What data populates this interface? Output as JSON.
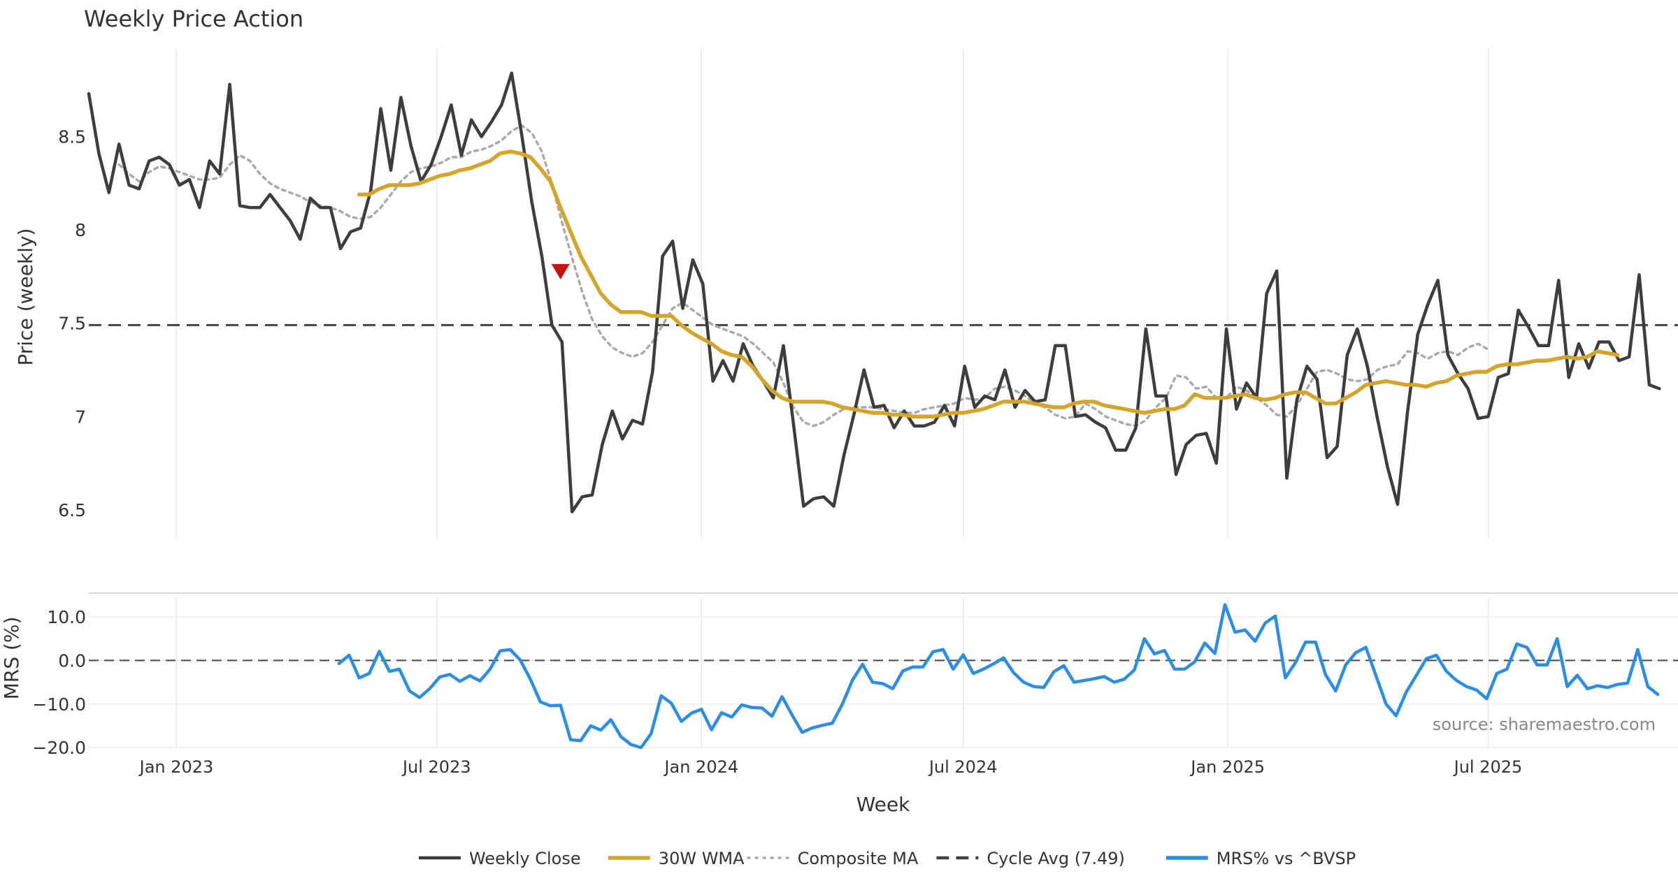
{
  "chart_data": {
    "type": "line",
    "title": "Weekly Price Action",
    "xlabel": "Week",
    "source": "source: sharemaestro.com",
    "colors": {
      "weekly_close": "#3d3d3d",
      "wma": "#d4a52b",
      "composite": "#aaaaaa",
      "cycle_avg": "#444444",
      "mrs": "#2b8de3",
      "marker": "#cc1111",
      "grid": "#e8e8e8"
    },
    "x_start": "2022-11-01",
    "x_end": "2025-11-10",
    "x_ticks": [
      {
        "date": "2023-01-01",
        "label": "Jan 2023"
      },
      {
        "date": "2023-07-01",
        "label": "Jul 2023"
      },
      {
        "date": "2024-01-01",
        "label": "Jan 2024"
      },
      {
        "date": "2024-07-01",
        "label": "Jul 2024"
      },
      {
        "date": "2025-01-01",
        "label": "Jan 2025"
      },
      {
        "date": "2025-07-01",
        "label": "Jul 2025"
      }
    ],
    "price_panel": {
      "ylabel": "Price (weekly)",
      "ylim": [
        6.35,
        8.97
      ],
      "y_ticks": [
        {
          "value": 6.5,
          "label": "6.5"
        },
        {
          "value": 7.0,
          "label": "7"
        },
        {
          "value": 7.5,
          "label": "7.5"
        },
        {
          "value": 8.0,
          "label": "8"
        },
        {
          "value": 8.5,
          "label": "8.5"
        }
      ],
      "cycle_avg": 7.49,
      "marker": {
        "date": "2023-09-25",
        "value": 7.78,
        "shape": "down-triangle"
      },
      "series": [
        {
          "name": "Weekly Close",
          "style": "solid",
          "start": "2022-11-01",
          "values": [
            8.73,
            8.41,
            8.2,
            8.46,
            8.24,
            8.22,
            8.37,
            8.39,
            8.35,
            8.24,
            8.27,
            8.12,
            8.37,
            8.3,
            8.78,
            8.13,
            8.12,
            8.12,
            8.19,
            8.12,
            8.05,
            7.95,
            8.17,
            8.12,
            8.12,
            7.9,
            7.99,
            8.01,
            8.21,
            8.65,
            8.32,
            8.71,
            8.45,
            8.26,
            8.35,
            8.5,
            8.67,
            8.4,
            8.59,
            8.5,
            8.58,
            8.67,
            8.84,
            8.51,
            8.15,
            7.86,
            7.49,
            7.4,
            6.49,
            6.57,
            6.58,
            6.85,
            7.03,
            6.88,
            6.98,
            6.96,
            7.24,
            7.86,
            7.94,
            7.58,
            7.84,
            7.71,
            7.19,
            7.3,
            7.19,
            7.39,
            7.27,
            7.19,
            7.1,
            7.38,
            6.96,
            6.52,
            6.56,
            6.57,
            6.52,
            6.79,
            7.01,
            7.25,
            7.05,
            7.06,
            6.94,
            7.03,
            6.95,
            6.95,
            6.97,
            7.06,
            6.95,
            7.27,
            7.05,
            7.11,
            7.09,
            7.25,
            7.05,
            7.14,
            7.08,
            7.09,
            7.38,
            7.38,
            7.0,
            7.01,
            6.97,
            6.94,
            6.82,
            6.82,
            6.94,
            7.47,
            7.11,
            7.11,
            6.69,
            6.85,
            6.9,
            6.91,
            6.75,
            7.47,
            7.04,
            7.18,
            7.1,
            7.66,
            7.78,
            6.67,
            7.09,
            7.27,
            7.2,
            6.78,
            6.84,
            7.33,
            7.47,
            7.27,
            6.99,
            6.73,
            6.53,
            7.03,
            7.44,
            7.6,
            7.73,
            7.33,
            7.23,
            7.15,
            6.99,
            7.0,
            7.21,
            7.23,
            7.57,
            7.48,
            7.38,
            7.38,
            7.73,
            7.21,
            7.39,
            7.26,
            7.4,
            7.4,
            7.3,
            7.32,
            7.76,
            7.17,
            7.15
          ]
        },
        {
          "name": "30W WMA",
          "style": "solid",
          "start": "2023-05-08",
          "values": [
            8.19,
            8.19,
            8.22,
            8.24,
            8.24,
            8.24,
            8.25,
            8.27,
            8.29,
            8.3,
            8.32,
            8.33,
            8.35,
            8.37,
            8.41,
            8.42,
            8.41,
            8.39,
            8.33,
            8.26,
            8.12,
            7.99,
            7.86,
            7.76,
            7.66,
            7.6,
            7.56,
            7.56,
            7.56,
            7.54,
            7.54,
            7.54,
            7.49,
            7.45,
            7.42,
            7.39,
            7.35,
            7.33,
            7.32,
            7.27,
            7.2,
            7.14,
            7.1,
            7.08,
            7.08,
            7.08,
            7.08,
            7.07,
            7.05,
            7.04,
            7.03,
            7.02,
            7.02,
            7.01,
            7.01,
            7.0,
            7.0,
            7.0,
            7.01,
            7.02,
            7.02,
            7.03,
            7.04,
            7.06,
            7.08,
            7.08,
            7.08,
            7.07,
            7.06,
            7.05,
            7.05,
            7.07,
            7.08,
            7.08,
            7.06,
            7.05,
            7.04,
            7.03,
            7.02,
            7.03,
            7.04,
            7.04,
            7.06,
            7.12,
            7.1,
            7.1,
            7.1,
            7.11,
            7.12,
            7.1,
            7.09,
            7.1,
            7.12,
            7.13,
            7.13,
            7.1,
            7.07,
            7.07,
            7.1,
            7.13,
            7.17,
            7.18,
            7.19,
            7.18,
            7.17,
            7.17,
            7.16,
            7.18,
            7.19,
            7.22,
            7.23,
            7.24,
            7.24,
            7.27,
            7.28,
            7.28,
            7.29,
            7.3,
            7.3,
            7.31,
            7.32,
            7.31,
            7.32,
            7.35,
            7.34,
            7.33
          ]
        },
        {
          "name": "Composite MA",
          "style": "dotted",
          "start": "2022-11-22",
          "values": [
            8.35,
            8.3,
            8.26,
            8.31,
            8.34,
            8.33,
            8.31,
            8.29,
            8.27,
            8.27,
            8.28,
            8.35,
            8.4,
            8.37,
            8.3,
            8.25,
            8.22,
            8.2,
            8.18,
            8.15,
            8.13,
            8.12,
            8.1,
            8.07,
            8.06,
            8.07,
            8.12,
            8.19,
            8.26,
            8.31,
            8.33,
            8.34,
            8.36,
            8.39,
            8.39,
            8.42,
            8.43,
            8.45,
            8.48,
            8.53,
            8.56,
            8.52,
            8.42,
            8.25,
            8.04,
            7.85,
            7.67,
            7.52,
            7.43,
            7.37,
            7.34,
            7.32,
            7.34,
            7.4,
            7.49,
            7.58,
            7.61,
            7.57,
            7.53,
            7.49,
            7.47,
            7.45,
            7.43,
            7.39,
            7.34,
            7.29,
            7.18,
            7.05,
            6.97,
            6.95,
            6.97,
            7.01,
            7.04,
            7.05,
            7.05,
            7.05,
            7.04,
            7.03,
            7.02,
            7.02,
            7.04,
            7.05,
            7.06,
            7.07,
            7.1,
            7.09,
            7.1,
            7.15,
            7.16,
            7.14,
            7.11,
            7.07,
            7.05,
            7.01,
            6.99,
            7.0,
            7.07,
            7.04,
            7.0,
            6.98,
            6.96,
            6.95,
            6.98,
            7.05,
            7.1,
            7.22,
            7.21,
            7.15,
            7.16,
            7.1,
            7.1,
            7.16,
            7.14,
            7.1,
            7.06,
            7.01,
            7.0,
            7.06,
            7.15,
            7.24,
            7.25,
            7.23,
            7.2,
            7.19,
            7.2,
            7.25,
            7.27,
            7.28,
            7.35,
            7.34,
            7.31,
            7.34,
            7.35,
            7.33,
            7.37,
            7.39,
            7.36
          ]
        }
      ]
    },
    "mrs_panel": {
      "ylabel": "MRS (%)",
      "ylim": [
        -20.3,
        14.5
      ],
      "y_ticks": [
        {
          "value": 10,
          "label": "10.0"
        },
        {
          "value": 0,
          "label": "0.0"
        },
        {
          "value": -10,
          "label": "−10.0"
        },
        {
          "value": -20,
          "label": "−20.0"
        }
      ],
      "zero_line": 0,
      "series": [
        {
          "name": "MRS% vs ^BVSP",
          "style": "solid",
          "start": "2023-04-24",
          "values": [
            -0.7,
            1.2,
            -4.0,
            -3.0,
            2.1,
            -2.5,
            -2.0,
            -7.0,
            -8.5,
            -6.5,
            -3.8,
            -3.2,
            -4.8,
            -3.5,
            -4.7,
            -2.0,
            2.2,
            2.5,
            0.1,
            -4.3,
            -9.5,
            -10.4,
            -10.3,
            -18.2,
            -18.4,
            -15.0,
            -16.0,
            -13.6,
            -17.5,
            -19.3,
            -20.0,
            -16.8,
            -8.1,
            -9.8,
            -14.0,
            -12.1,
            -11.2,
            -15.9,
            -12.0,
            -13.0,
            -10.2,
            -10.8,
            -10.9,
            -12.8,
            -8.3,
            -12.5,
            -16.5,
            -15.5,
            -14.9,
            -14.4,
            -10.0,
            -4.5,
            -0.9,
            -5.0,
            -5.3,
            -6.5,
            -2.4,
            -1.5,
            -1.5,
            2.0,
            2.5,
            -2.0,
            1.3,
            -3.0,
            -2.0,
            -0.8,
            0.6,
            -2.8,
            -5.0,
            -6.0,
            -6.2,
            -2.6,
            -1.2,
            -5.0,
            -4.6,
            -4.2,
            -3.7,
            -5.0,
            -4.3,
            -2.2,
            5.0,
            1.5,
            2.3,
            -2.0,
            -2.0,
            -0.3,
            4.0,
            1.6,
            12.8,
            6.5,
            7.0,
            4.4,
            8.6,
            10.2,
            -4.0,
            -0.5,
            4.2,
            4.2,
            -3.3,
            -7.0,
            -1.0,
            1.8,
            3.0,
            -3.5,
            -10.0,
            -12.7,
            -7.3,
            -3.5,
            0.4,
            1.2,
            -2.5,
            -4.6,
            -6.0,
            -6.8,
            -8.8,
            -3.0,
            -2.0,
            3.8,
            3.0,
            -1.0,
            -1.0,
            5.0,
            -6.0,
            -3.4,
            -6.5,
            -5.8,
            -6.2,
            -5.5,
            -5.2,
            2.5,
            -6.0,
            -7.8
          ]
        }
      ]
    },
    "legend": {
      "placement": "bottom-center",
      "entries": [
        {
          "label": "Weekly Close",
          "style": "solid",
          "color": "#3d3d3d"
        },
        {
          "label": "30W WMA",
          "style": "solid-thick",
          "color": "#d4a52b"
        },
        {
          "label": "Composite MA",
          "style": "dotted",
          "color": "#aaaaaa"
        },
        {
          "label": "Cycle Avg (7.49)",
          "style": "dashed",
          "color": "#444444"
        },
        {
          "label": "MRS% vs ^BVSP",
          "style": "solid-thick",
          "color": "#2b8de3"
        }
      ]
    }
  }
}
